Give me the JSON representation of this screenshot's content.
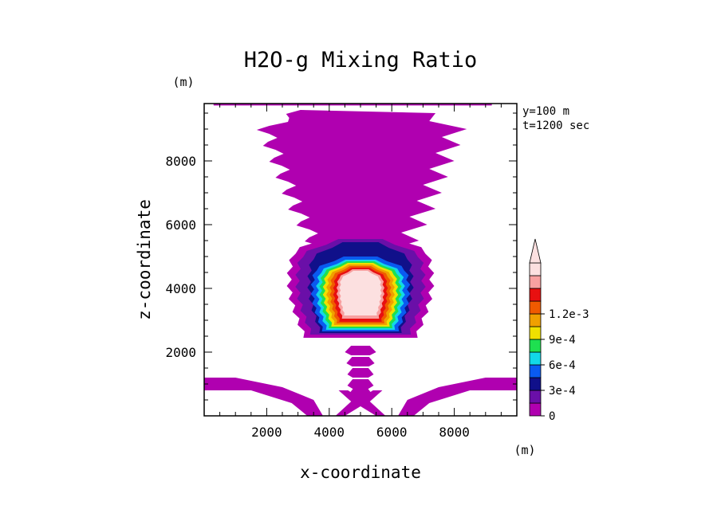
{
  "chart_data": {
    "type": "heatmap",
    "title": "H2O-g Mixing Ratio",
    "xlabel": "x-coordinate",
    "ylabel": "z-coordinate",
    "x_unit": "(m)",
    "y_unit": "(m)",
    "annotations": [
      "y=100 m",
      "t=1200 sec"
    ],
    "xlim": [
      0,
      10000
    ],
    "ylim": [
      0,
      9800
    ],
    "xticks": [
      2000,
      4000,
      6000,
      8000
    ],
    "xtick_labels": [
      "2000",
      "4000",
      "6000",
      "8000"
    ],
    "yticks": [
      2000,
      4000,
      6000,
      8000
    ],
    "ytick_labels": [
      "2000",
      "4000",
      "6000",
      "8000"
    ],
    "colorbar": {
      "levels": [
        0,
        0.00015,
        0.0003,
        0.00045,
        0.0006,
        0.00075,
        0.0009,
        0.00105,
        0.0012,
        0.00135
      ],
      "labels": [
        {
          "value": 0,
          "text": "0"
        },
        {
          "value": 0.0003,
          "text": "3e-4"
        },
        {
          "value": 0.0006,
          "text": "6e-4"
        },
        {
          "value": 0.0009,
          "text": "9e-4"
        },
        {
          "value": 0.0012,
          "text": "1.2e-3"
        }
      ],
      "colors": [
        "#b000b0",
        "#6a0fa8",
        "#10108a",
        "#0a5af0",
        "#12d8e8",
        "#1ee050",
        "#f0e000",
        "#f0a000",
        "#f05a00",
        "#e81010",
        "#f8a0a0",
        "#fce0e0"
      ],
      "extend": "max"
    },
    "features": [
      {
        "name": "upper plume",
        "level": "0 to 1.5e-4",
        "x_range": [
          1500,
          8500
        ],
        "z_range": [
          5000,
          9600
        ]
      },
      {
        "name": "cloud core",
        "level": ">1.2e-3",
        "center_x": 5000,
        "z_range": [
          2700,
          4800
        ]
      },
      {
        "name": "lower stripes",
        "level": "0 to 1.5e-4",
        "x_range": [
          3500,
          6500
        ],
        "z_range": [
          400,
          2200
        ]
      },
      {
        "name": "boundary layer band",
        "level": "0 to 1.5e-4",
        "z_range": [
          400,
          1300
        ]
      }
    ]
  }
}
